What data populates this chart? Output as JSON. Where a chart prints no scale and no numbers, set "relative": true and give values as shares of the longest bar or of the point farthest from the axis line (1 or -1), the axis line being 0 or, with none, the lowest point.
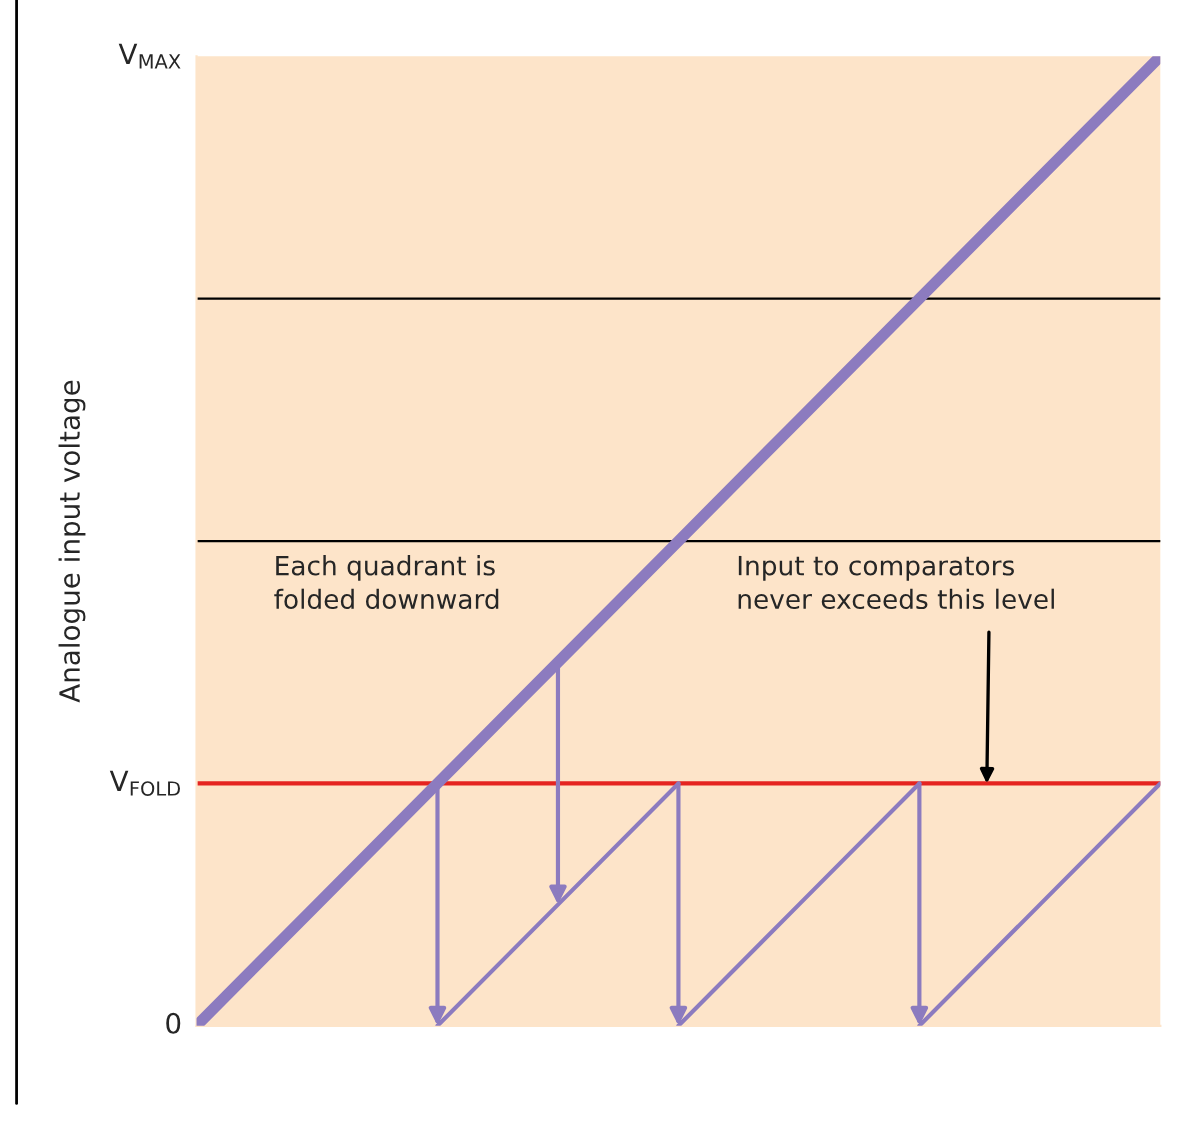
{
  "chart_data": {
    "type": "line",
    "ylabel": "Analogue input voltage",
    "relative": true,
    "categories": [
      null,
      null,
      null,
      null,
      null,
      null,
      null,
      null,
      null
    ],
    "series": [
      {
        "color": "#8c7bbf",
        "values": [
          0,
          0.125,
          0.25,
          0.375,
          0.5,
          0.625,
          0.75,
          0.875,
          1
        ]
      },
      {
        "color": "#8c7bbf",
        "values": [
          null,
          null,
          0,
          0.125,
          0.25,
          null,
          null,
          null,
          null
        ]
      },
      {
        "color": "#8c7bbf",
        "values": [
          null,
          null,
          null,
          null,
          0,
          0.125,
          0.25,
          null,
          null
        ]
      },
      {
        "color": "#8c7bbf",
        "values": [
          null,
          null,
          null,
          null,
          null,
          null,
          0,
          0.125,
          0.25
        ]
      }
    ],
    "ref_lines": [
      {
        "axis": "y",
        "value": 0.25,
        "color": "#e52420",
        "label": "V$_{FOLD}$"
      },
      {
        "axis": "y",
        "value": 0.5,
        "color": "#000000"
      },
      {
        "axis": "y",
        "value": 0.75,
        "color": "#000000"
      }
    ],
    "annotations": [
      "0",
      "V$_{MAX}$",
      "Each quadrant is folded downward",
      "Input to comparators never exceeds this level"
    ]
  }
}
